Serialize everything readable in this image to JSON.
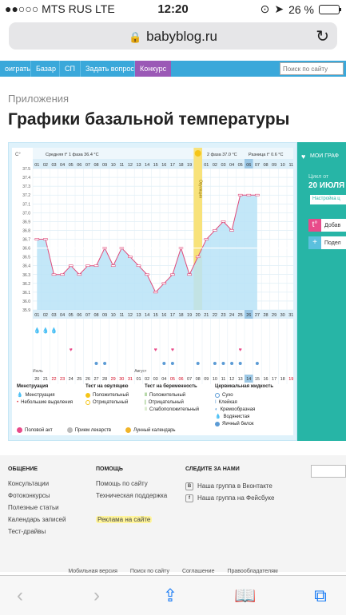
{
  "status_bar": {
    "carrier": "●●○○○ MTS RUS  LTE",
    "time": "12:20",
    "battery": "26 %",
    "battery_level": 0.26
  },
  "browser": {
    "url": "babyblog.ru"
  },
  "nav": {
    "items": [
      "оиграть",
      "Базар",
      "СП",
      "Задать вопрос",
      "Конкурс"
    ],
    "search_placeholder": "Поиск по сайту"
  },
  "page": {
    "breadcrumb": "Приложения",
    "title": "Графики базальной температуры"
  },
  "chart_data": {
    "type": "line",
    "y_unit": "C°",
    "ylim": [
      35.9,
      37.5
    ],
    "yticks": [
      37.5,
      37.4,
      37.3,
      37.2,
      37.1,
      37.0,
      36.9,
      36.8,
      36.7,
      36.6,
      36.5,
      36.4,
      36.3,
      36.2,
      36.1,
      36.0,
      35.9
    ],
    "phase1_label": "Средняя t° 1 фаза 36.4 °С",
    "phase2_label": "2 фаза 37.0 °С",
    "diff_label": "Разница t° 0.6 °С",
    "ovulation_label": "Овуляция",
    "ovulation_day_index": 19,
    "top_days": [
      "01",
      "02",
      "03",
      "04",
      "05",
      "06",
      "07",
      "08",
      "09",
      "10",
      "11",
      "12",
      "13",
      "14",
      "15",
      "16",
      "17",
      "18",
      "19",
      "20",
      "01",
      "02",
      "03",
      "04",
      "05",
      "06",
      "07",
      "08",
      "09",
      "10",
      "11"
    ],
    "bottom_days": [
      "01",
      "02",
      "03",
      "04",
      "05",
      "06",
      "07",
      "08",
      "09",
      "10",
      "11",
      "12",
      "13",
      "14",
      "15",
      "16",
      "17",
      "18",
      "19",
      "20",
      "21",
      "22",
      "23",
      "24",
      "25",
      "26",
      "27",
      "28",
      "29",
      "30",
      "31"
    ],
    "highlight_day_index": 25,
    "temperatures": [
      36.7,
      36.7,
      36.3,
      36.3,
      36.4,
      36.3,
      36.4,
      36.4,
      36.6,
      36.4,
      36.6,
      36.5,
      36.4,
      36.3,
      36.1,
      36.2,
      36.3,
      36.6,
      36.3,
      36.5,
      36.7,
      36.8,
      36.9,
      36.8,
      37.2,
      37.2,
      37.2
    ],
    "month_labels": [
      "Июль",
      "Август"
    ],
    "calendar_days": [
      "20",
      "21",
      "22",
      "23",
      "24",
      "25",
      "26",
      "27",
      "28",
      "29",
      "30",
      "31",
      "01",
      "02",
      "03",
      "04",
      "05",
      "06",
      "07",
      "08",
      "09",
      "10",
      "11",
      "12",
      "13",
      "14",
      "15",
      "16",
      "17",
      "18",
      "19"
    ],
    "calendar_red_indexes": [
      2,
      3,
      9,
      10,
      11,
      16,
      17,
      30
    ],
    "calendar_box_index": 25
  },
  "legend": {
    "menstruation": {
      "title": "Менструация",
      "items": [
        "Менструация",
        "Небольшие выделения"
      ]
    },
    "ovulation_test": {
      "title": "Тест на овуляцию",
      "items": [
        "Положительный",
        "Отрицательный"
      ]
    },
    "pregnancy_test": {
      "title": "Тест на беременность",
      "items": [
        "Положительный",
        "Отрицательный",
        "Слабоположительный"
      ]
    },
    "cervical": {
      "title": "Цервикальная жидкость",
      "items": [
        "Сухо",
        "Клейкая",
        "Кремообразная",
        "Водянистая",
        "Яичный белок"
      ]
    },
    "bottom": [
      "Половой акт",
      "Прием лекарств",
      "Лунный календарь"
    ]
  },
  "sidebar": {
    "title": "МОИ ГРАФ",
    "cycle_label": "Цикл от",
    "cycle_date": "20 ИЮЛЯ 2",
    "setup_label": "Настройка ц",
    "action_add": "Добав",
    "action_share": "Подел"
  },
  "footer": {
    "general": {
      "title": "ОБЩЕНИЕ",
      "links": [
        "Консультации",
        "Фотоконкурсы",
        "Полезные статьи",
        "Календарь записей",
        "Тест-драйвы"
      ]
    },
    "help": {
      "title": "ПОМОЩЬ",
      "links": [
        "Помощь по сайту",
        "Техническая поддержка",
        "Реклама на сайте"
      ]
    },
    "follow": {
      "title": "СЛЕДИТЕ ЗА НАМИ",
      "links": [
        "Наша группа в Вконтакте",
        "Наша группа на Фейсбуке"
      ]
    },
    "bottom_links": [
      "Мобильная версия",
      "Поиск по сайту",
      "Соглашение",
      "Правообладателям"
    ]
  },
  "colors": {
    "nav": "#3aa8da",
    "chart_fill": "#b9e3f7",
    "line": "#e04b7a",
    "ovulation": "#f8e27a",
    "sidebar": "#27b5a6"
  }
}
